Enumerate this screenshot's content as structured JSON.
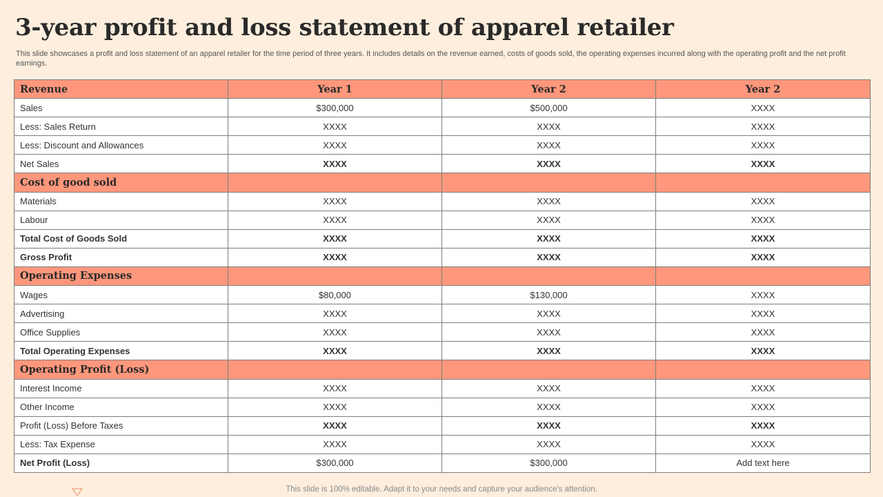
{
  "title": "3-year profit and loss statement of apparel retailer",
  "subtitle": "This slide showcases a profit and loss statement of an apparel retailer for the time period of three years. It includes details on the revenue earned, costs of goods sold, the operating expenses incurred along with the operating profit and the net profit earnings.",
  "table": {
    "header": {
      "label": "Revenue",
      "years": [
        "Year 1",
        "Year 2",
        "Year 2"
      ]
    },
    "rows": [
      {
        "type": "data",
        "bold": false,
        "label": "Sales",
        "values": [
          "$300,000",
          "$500,000",
          "XXXX"
        ]
      },
      {
        "type": "data",
        "bold": false,
        "label": "Less: Sales Return",
        "values": [
          "XXXX",
          "XXXX",
          "XXXX"
        ]
      },
      {
        "type": "data",
        "bold": false,
        "label": "Less: Discount and Allowances",
        "values": [
          "XXXX",
          "XXXX",
          "XXXX"
        ]
      },
      {
        "type": "data",
        "bold": false,
        "label": "Net Sales",
        "values": [
          "XXXX",
          "XXXX",
          "XXXX"
        ],
        "bold_values": true
      },
      {
        "type": "section",
        "label": "Cost of good sold",
        "values": [
          "",
          "",
          ""
        ]
      },
      {
        "type": "data",
        "bold": false,
        "label": "Materials",
        "values": [
          "XXXX",
          "XXXX",
          "XXXX"
        ]
      },
      {
        "type": "data",
        "bold": false,
        "label": "Labour",
        "values": [
          "XXXX",
          "XXXX",
          "XXXX"
        ]
      },
      {
        "type": "data",
        "bold": true,
        "label": "Total Cost  of Goods  Sold",
        "values": [
          "XXXX",
          "XXXX",
          "XXXX"
        ]
      },
      {
        "type": "data",
        "bold": true,
        "label": "Gross  Profit",
        "values": [
          "XXXX",
          "XXXX",
          "XXXX"
        ]
      },
      {
        "type": "section",
        "label": "Operating Expenses",
        "values": [
          "",
          "",
          ""
        ]
      },
      {
        "type": "data",
        "bold": false,
        "label": "Wages",
        "values": [
          "$80,000",
          "$130,000",
          "XXXX"
        ]
      },
      {
        "type": "data",
        "bold": false,
        "label": "Advertising",
        "values": [
          "XXXX",
          "XXXX",
          "XXXX"
        ]
      },
      {
        "type": "data",
        "bold": false,
        "label": "Office Supplies",
        "values": [
          "XXXX",
          "XXXX",
          "XXXX"
        ]
      },
      {
        "type": "data",
        "bold": true,
        "label": "Total Operating Expenses",
        "values": [
          "XXXX",
          "XXXX",
          "XXXX"
        ]
      },
      {
        "type": "section",
        "label": "Operating Profit (Loss)",
        "values": [
          "",
          "",
          ""
        ]
      },
      {
        "type": "data",
        "bold": false,
        "label": "Interest Income",
        "values": [
          "XXXX",
          "XXXX",
          "XXXX"
        ]
      },
      {
        "type": "data",
        "bold": false,
        "label": "Other Income",
        "values": [
          "XXXX",
          "XXXX",
          "XXXX"
        ]
      },
      {
        "type": "data",
        "bold": false,
        "label": "Profit (Loss) Before Taxes",
        "values": [
          "XXXX",
          "XXXX",
          "XXXX"
        ],
        "bold_values": true
      },
      {
        "type": "data",
        "bold": false,
        "label": "Less: Tax Expense",
        "values": [
          "XXXX",
          "XXXX",
          "XXXX"
        ]
      },
      {
        "type": "data",
        "bold": false,
        "bold_label": true,
        "label": "Net Profit (Loss)",
        "values": [
          "$300,000",
          "$300,000",
          "Add text here"
        ]
      }
    ]
  },
  "footer": "This slide is 100% editable. Adapt it to your needs and capture your audience's attention.",
  "colors": {
    "background": "#fdeedd",
    "header_fill": "#ff977c",
    "border": "#7d7d7d",
    "accent_icon": "#f3a07f"
  },
  "icons": {
    "footer_marker": "triangle-down-icon"
  }
}
